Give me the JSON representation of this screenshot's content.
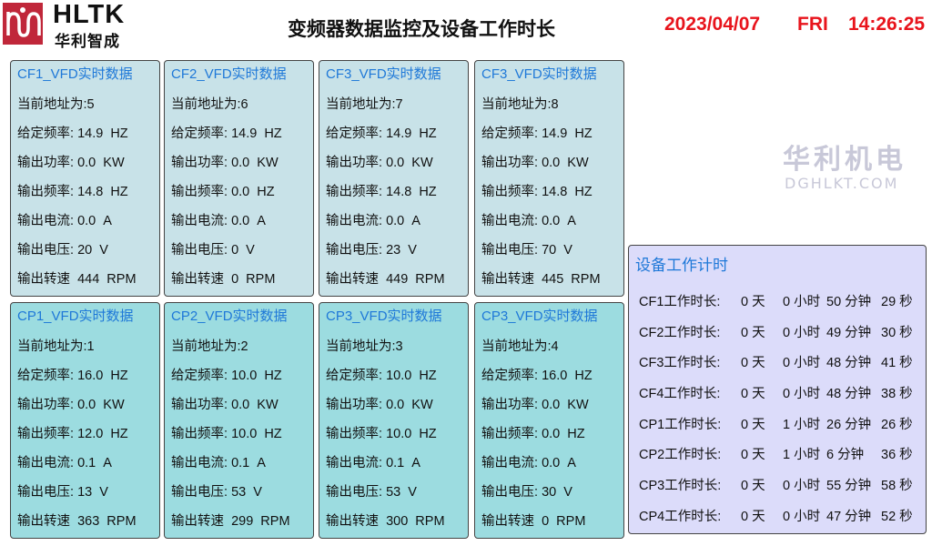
{
  "header": {
    "brand": "HLTK",
    "brand_sub": "华利智成",
    "title": "变频器数据监控及设备工作时长",
    "date": "2023/04/07",
    "weekday": "FRI",
    "time": "14:26:25"
  },
  "labels": {
    "address": "当前地址为:",
    "set_freq": "给定频率:",
    "out_power": "输出功率:",
    "out_freq": "输出频率:",
    "out_current": "输出电流:",
    "out_voltage": "输出电压:",
    "out_speed": "输出转速"
  },
  "panels": [
    {
      "title": "CF1_VFD实时数据",
      "address": "5",
      "set_freq": "14.9  HZ",
      "out_power": "0.0  KW",
      "out_freq": "14.8  HZ",
      "out_current": "0.0  A",
      "out_voltage": "20  V",
      "out_speed": "444  RPM"
    },
    {
      "title": "CF2_VFD实时数据",
      "address": "6",
      "set_freq": "14.9  HZ",
      "out_power": "0.0  KW",
      "out_freq": "0.0  HZ",
      "out_current": "0.0  A",
      "out_voltage": "0  V",
      "out_speed": "0  RPM"
    },
    {
      "title": "CF3_VFD实时数据",
      "address": "7",
      "set_freq": "14.9  HZ",
      "out_power": "0.0  KW",
      "out_freq": "14.8  HZ",
      "out_current": "0.0  A",
      "out_voltage": "23  V",
      "out_speed": "449  RPM"
    },
    {
      "title": "CF3_VFD实时数据",
      "address": "8",
      "set_freq": "14.9  HZ",
      "out_power": "0.0  KW",
      "out_freq": "14.8  HZ",
      "out_current": "0.0  A",
      "out_voltage": "70  V",
      "out_speed": "445  RPM"
    },
    {
      "title": "CP1_VFD实时数据",
      "address": "1",
      "set_freq": "16.0  HZ",
      "out_power": "0.0  KW",
      "out_freq": "12.0  HZ",
      "out_current": "0.1  A",
      "out_voltage": "13  V",
      "out_speed": "363  RPM"
    },
    {
      "title": "CP2_VFD实时数据",
      "address": "2",
      "set_freq": "10.0  HZ",
      "out_power": "0.0  KW",
      "out_freq": "10.0  HZ",
      "out_current": "0.1  A",
      "out_voltage": "53  V",
      "out_speed": "299  RPM"
    },
    {
      "title": "CP3_VFD实时数据",
      "address": "3",
      "set_freq": "10.0  HZ",
      "out_power": "0.0  KW",
      "out_freq": "10.0  HZ",
      "out_current": "0.1  A",
      "out_voltage": "53  V",
      "out_speed": "300  RPM"
    },
    {
      "title": "CP3_VFD实时数据",
      "address": "4",
      "set_freq": "16.0  HZ",
      "out_power": "0.0  KW",
      "out_freq": "0.0  HZ",
      "out_current": "0.0  A",
      "out_voltage": "30  V",
      "out_speed": "0  RPM"
    }
  ],
  "timer": {
    "title": "设备工作计时",
    "rows": [
      {
        "label": "CF1工作时长:",
        "days": "0 天",
        "hours": "0 小时",
        "minutes": "50 分钟",
        "seconds": "29 秒"
      },
      {
        "label": "CF2工作时长:",
        "days": "0 天",
        "hours": "0 小时",
        "minutes": "49 分钟",
        "seconds": "30 秒"
      },
      {
        "label": "CF3工作时长:",
        "days": "0 天",
        "hours": "0 小时",
        "minutes": "48 分钟",
        "seconds": "41 秒"
      },
      {
        "label": "CF4工作时长:",
        "days": "0 天",
        "hours": "0 小时",
        "minutes": "48 分钟",
        "seconds": "38 秒"
      },
      {
        "label": "CP1工作时长:",
        "days": "0 天",
        "hours": "1 小时",
        "minutes": "26 分钟",
        "seconds": "26 秒"
      },
      {
        "label": "CP2工作时长:",
        "days": "0 天",
        "hours": "1 小时",
        "minutes": "6 分钟",
        "seconds": "36 秒"
      },
      {
        "label": "CP3工作时长:",
        "days": "0 天",
        "hours": "0 小时",
        "minutes": "55 分钟",
        "seconds": "58 秒"
      },
      {
        "label": "CP4工作时长:",
        "days": "0 天",
        "hours": "0 小时",
        "minutes": "47 分钟",
        "seconds": "52 秒"
      }
    ]
  },
  "watermark": {
    "text": "华利机电",
    "url": "DGHLKT.COM"
  },
  "colors": {
    "accent_title": "#1e78d8",
    "clock": "#e8141c",
    "top_panel": "#c8e2e8",
    "bottom_panel": "#9cdce0",
    "timer_panel": "#dcdcfa",
    "logo": "#c0273a"
  }
}
